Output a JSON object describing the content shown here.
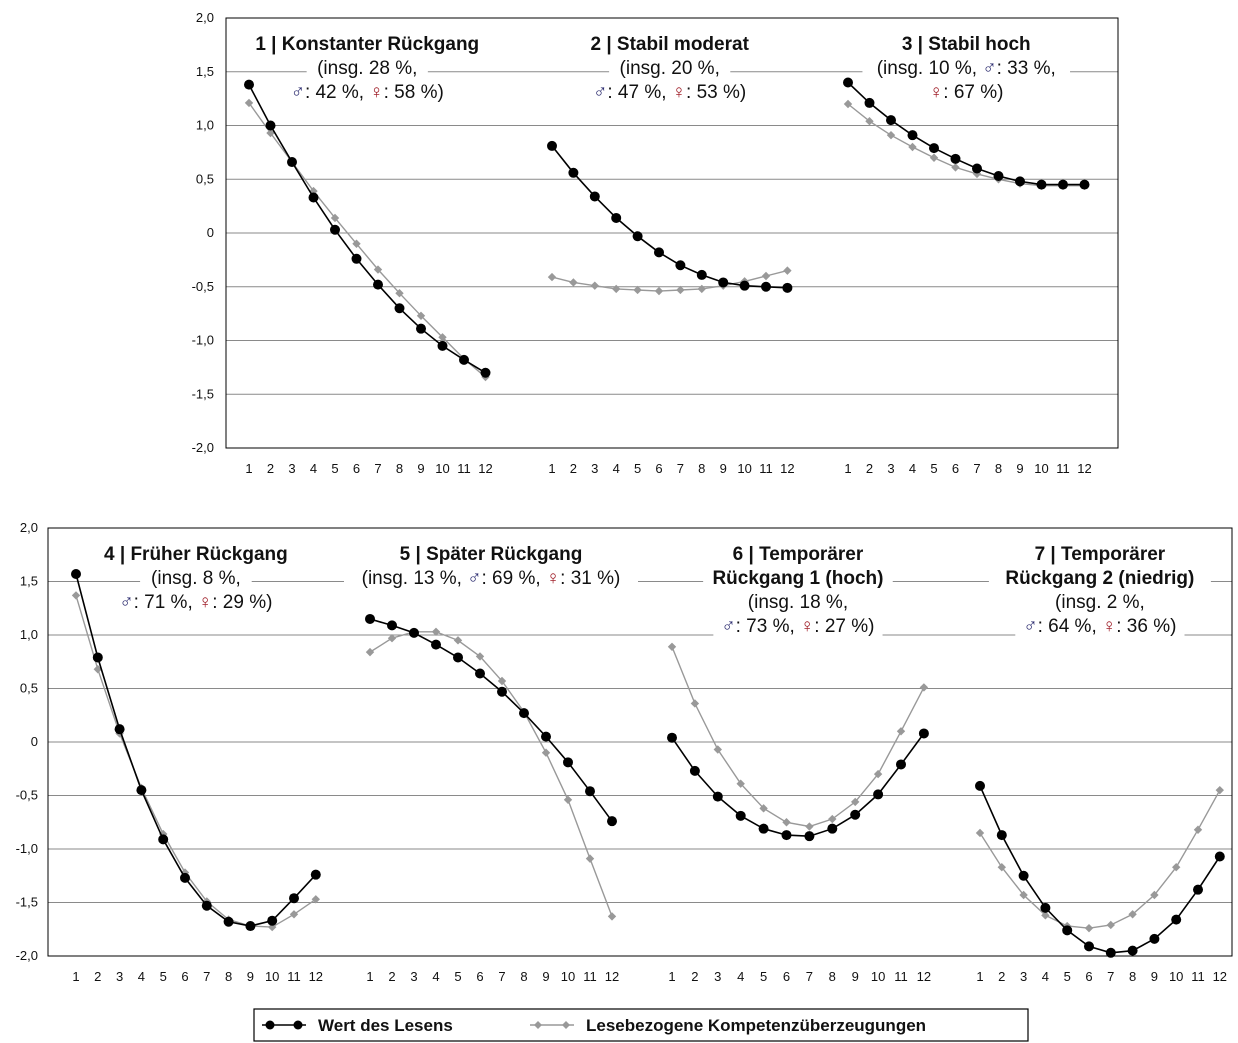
{
  "legend": {
    "items": [
      {
        "label": "Wert des Lesens",
        "color": "#000000",
        "marker": "circle"
      },
      {
        "label": "Lesebezogene Kompetenzüberzeugungen",
        "color": "#999999",
        "marker": "diamond"
      }
    ]
  },
  "chart_data": [
    {
      "type": "line",
      "y_tick_labels": [
        "2,0",
        "1,5",
        "1,0",
        "0,5",
        "0",
        "-0,5",
        "-1,0",
        "-1,5",
        "-2,0"
      ],
      "ylim": [
        -2.0,
        2.0
      ],
      "grid": true,
      "panels": [
        {
          "title_lines": [
            [
              {
                "t": "1 | Konstanter Rückgang",
                "bold": true
              }
            ],
            [
              {
                "t": "(insg. 28 %,"
              }
            ],
            [
              {
                "t": "♂",
                "c": "#2a2a6e"
              },
              {
                "t": ": 42 %, "
              },
              {
                "t": "♀",
                "c": "#a0202a"
              },
              {
                "t": ": 58 %)"
              }
            ]
          ],
          "x": [
            "1",
            "2",
            "3",
            "4",
            "5",
            "6",
            "7",
            "8",
            "9",
            "10",
            "11",
            "12"
          ],
          "series": [
            {
              "name": "Wert des Lesens",
              "values": [
                1.38,
                1.0,
                0.66,
                0.33,
                0.03,
                -0.24,
                -0.48,
                -0.7,
                -0.89,
                -1.05,
                -1.18,
                -1.3
              ]
            },
            {
              "name": "Lesebezogene Kompetenzüberzeugungen",
              "values": [
                1.21,
                0.93,
                0.66,
                0.39,
                0.14,
                -0.1,
                -0.34,
                -0.56,
                -0.77,
                -0.97,
                -1.17,
                -1.34
              ]
            }
          ]
        },
        {
          "title_lines": [
            [
              {
                "t": "2 | Stabil moderat",
                "bold": true
              }
            ],
            [
              {
                "t": "(insg. 20 %,"
              }
            ],
            [
              {
                "t": "♂",
                "c": "#2a2a6e"
              },
              {
                "t": ": 47 %, "
              },
              {
                "t": "♀",
                "c": "#a0202a"
              },
              {
                "t": ": 53 %)"
              }
            ]
          ],
          "x": [
            "1",
            "2",
            "3",
            "4",
            "5",
            "6",
            "7",
            "8",
            "9",
            "10",
            "11",
            "12"
          ],
          "series": [
            {
              "name": "Wert des Lesens",
              "values": [
                0.81,
                0.56,
                0.34,
                0.14,
                -0.03,
                -0.18,
                -0.3,
                -0.39,
                -0.46,
                -0.49,
                -0.5,
                -0.51
              ]
            },
            {
              "name": "Lesebezogene Kompetenzüberzeugungen",
              "values": [
                -0.41,
                -0.46,
                -0.49,
                -0.52,
                -0.53,
                -0.54,
                -0.53,
                -0.52,
                -0.49,
                -0.45,
                -0.4,
                -0.35
              ]
            }
          ]
        },
        {
          "title_lines": [
            [
              {
                "t": "3 | Stabil hoch",
                "bold": true
              }
            ],
            [
              {
                "t": "(insg. 10 %, "
              },
              {
                "t": "♂",
                "c": "#2a2a6e"
              },
              {
                "t": ": 33 %,"
              }
            ],
            [
              {
                "t": "♀",
                "c": "#a0202a"
              },
              {
                "t": ": 67 %)"
              }
            ]
          ],
          "x": [
            "1",
            "2",
            "3",
            "4",
            "5",
            "6",
            "7",
            "8",
            "9",
            "10",
            "11",
            "12"
          ],
          "series": [
            {
              "name": "Wert des Lesens",
              "values": [
                1.4,
                1.21,
                1.05,
                0.91,
                0.79,
                0.69,
                0.6,
                0.53,
                0.48,
                0.45,
                0.45,
                0.45
              ]
            },
            {
              "name": "Lesebezogene Kompetenzüberzeugungen",
              "values": [
                1.2,
                1.04,
                0.91,
                0.8,
                0.7,
                0.61,
                0.55,
                0.5,
                0.46,
                0.44,
                0.44,
                0.44
              ]
            }
          ]
        },
        {
          "title_lines": [
            [
              {
                "t": "4 | Früher Rückgang",
                "bold": true
              }
            ],
            [
              {
                "t": "(insg. 8 %,"
              }
            ],
            [
              {
                "t": "♂",
                "c": "#2a2a6e"
              },
              {
                "t": ": 71 %, "
              },
              {
                "t": "♀",
                "c": "#a0202a"
              },
              {
                "t": ": 29 %)"
              }
            ]
          ],
          "x": [
            "1",
            "2",
            "3",
            "4",
            "5",
            "6",
            "7",
            "8",
            "9",
            "10",
            "11",
            "12"
          ],
          "series": [
            {
              "name": "Wert des Lesens",
              "values": [
                1.57,
                0.79,
                0.12,
                -0.45,
                -0.91,
                -1.27,
                -1.53,
                -1.68,
                -1.72,
                -1.67,
                -1.46,
                -1.24
              ]
            },
            {
              "name": "Lesebezogene Kompetenzüberzeugungen",
              "values": [
                1.37,
                0.68,
                0.08,
                -0.43,
                -0.86,
                -1.22,
                -1.49,
                -1.66,
                -1.72,
                -1.73,
                -1.61,
                -1.47
              ]
            }
          ]
        },
        {
          "title_lines": [
            [
              {
                "t": "5 | Später Rückgang",
                "bold": true
              }
            ],
            [
              {
                "t": "(insg. 13 %, "
              },
              {
                "t": "♂",
                "c": "#2a2a6e"
              },
              {
                "t": ": 69 %, "
              },
              {
                "t": "♀",
                "c": "#a0202a"
              },
              {
                "t": ": 31 %)"
              }
            ]
          ],
          "x": [
            "1",
            "2",
            "3",
            "4",
            "5",
            "6",
            "7",
            "8",
            "9",
            "10",
            "11",
            "12"
          ],
          "series": [
            {
              "name": "Wert des Lesens",
              "values": [
                1.15,
                1.09,
                1.02,
                0.91,
                0.79,
                0.64,
                0.47,
                0.27,
                0.05,
                -0.19,
                -0.46,
                -0.74
              ]
            },
            {
              "name": "Lesebezogene Kompetenzüberzeugungen",
              "values": [
                0.84,
                0.97,
                1.03,
                1.03,
                0.95,
                0.8,
                0.57,
                0.28,
                -0.1,
                -0.54,
                -1.09,
                -1.63
              ]
            }
          ]
        },
        {
          "title_lines": [
            [
              {
                "t": "6 | Temporärer",
                "bold": true
              }
            ],
            [
              {
                "t": "Rückgang 1 (hoch)",
                "bold": true
              }
            ],
            [
              {
                "t": "(insg. 18 %,"
              }
            ],
            [
              {
                "t": "♂",
                "c": "#2a2a6e"
              },
              {
                "t": ": 73 %, "
              },
              {
                "t": "♀",
                "c": "#a0202a"
              },
              {
                "t": ": 27 %)"
              }
            ]
          ],
          "x": [
            "1",
            "2",
            "3",
            "4",
            "5",
            "6",
            "7",
            "8",
            "9",
            "10",
            "11",
            "12"
          ],
          "series": [
            {
              "name": "Wert des Lesens",
              "values": [
                0.04,
                -0.27,
                -0.51,
                -0.69,
                -0.81,
                -0.87,
                -0.88,
                -0.81,
                -0.68,
                -0.49,
                -0.21,
                0.08
              ]
            },
            {
              "name": "Lesebezogene Kompetenzüberzeugungen",
              "values": [
                0.89,
                0.36,
                -0.07,
                -0.39,
                -0.62,
                -0.75,
                -0.79,
                -0.72,
                -0.56,
                -0.3,
                0.1,
                0.51
              ]
            }
          ]
        },
        {
          "title_lines": [
            [
              {
                "t": "7 | Temporärer",
                "bold": true
              }
            ],
            [
              {
                "t": "Rückgang 2 (niedrig)",
                "bold": true
              }
            ],
            [
              {
                "t": "(insg. 2 %,"
              }
            ],
            [
              {
                "t": "♂",
                "c": "#2a2a6e"
              },
              {
                "t": ": 64 %, "
              },
              {
                "t": "♀",
                "c": "#a0202a"
              },
              {
                "t": ": 36 %)"
              }
            ]
          ],
          "x": [
            "1",
            "2",
            "3",
            "4",
            "5",
            "6",
            "7",
            "8",
            "9",
            "10",
            "11",
            "12"
          ],
          "series": [
            {
              "name": "Wert des Lesens",
              "values": [
                -0.41,
                -0.87,
                -1.25,
                -1.55,
                -1.76,
                -1.91,
                -1.97,
                -1.95,
                -1.84,
                -1.66,
                -1.38,
                -1.07
              ]
            },
            {
              "name": "Lesebezogene Kompetenzüberzeugungen",
              "values": [
                -0.85,
                -1.17,
                -1.43,
                -1.62,
                -1.72,
                -1.74,
                -1.71,
                -1.61,
                -1.43,
                -1.17,
                -0.82,
                -0.45
              ]
            }
          ]
        }
      ]
    }
  ]
}
